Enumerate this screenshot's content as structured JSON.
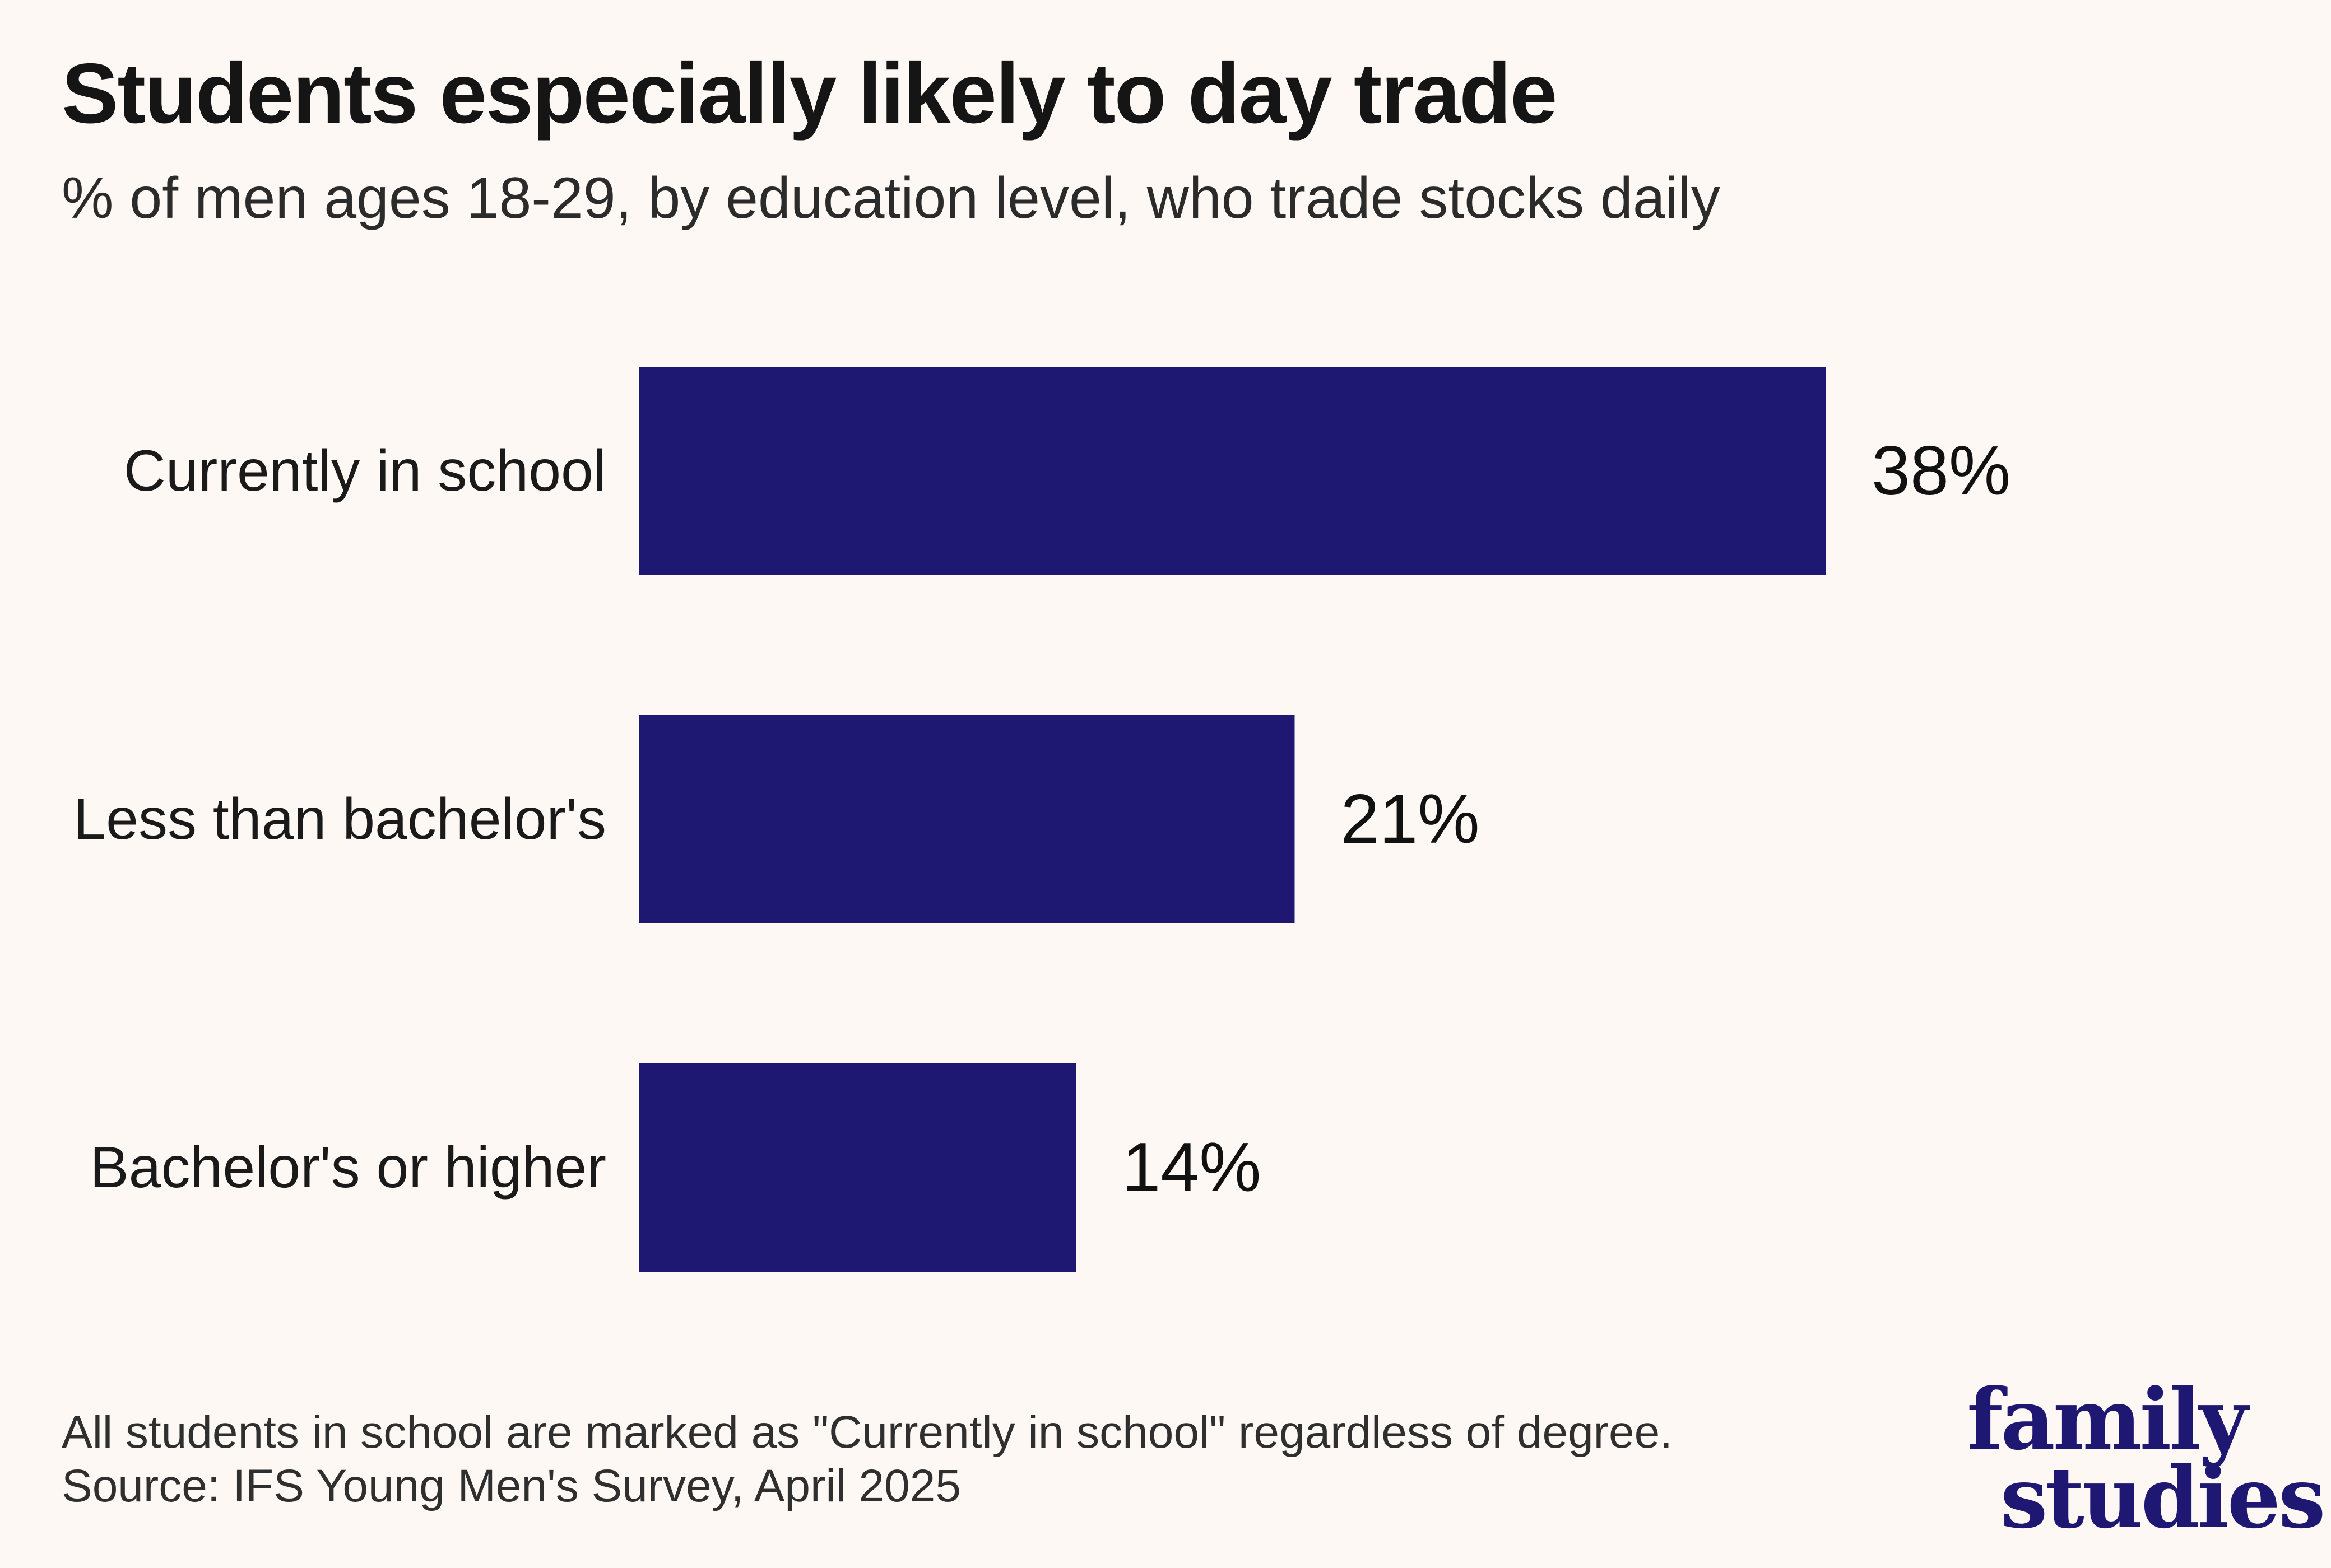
{
  "title": "Students especially likely to day trade",
  "subtitle": "% of men ages 18-29, by education level, who trade stocks daily",
  "chart_data": {
    "type": "bar",
    "orientation": "horizontal",
    "categories": [
      "Currently in school",
      "Less than bachelor's",
      "Bachelor's or higher"
    ],
    "values": [
      38,
      21,
      14
    ],
    "value_labels": [
      "38%",
      "21%",
      "14%"
    ],
    "bar_color": "#1e1873",
    "grid": false
  },
  "footnote": {
    "note": "All students in school are marked as \"Currently in school\" regardless of degree.",
    "source": "Source: IFS Young Men's Survey, April 2025"
  },
  "logo": {
    "line1": "family",
    "line2": "studies",
    "color": "#1e1873"
  }
}
